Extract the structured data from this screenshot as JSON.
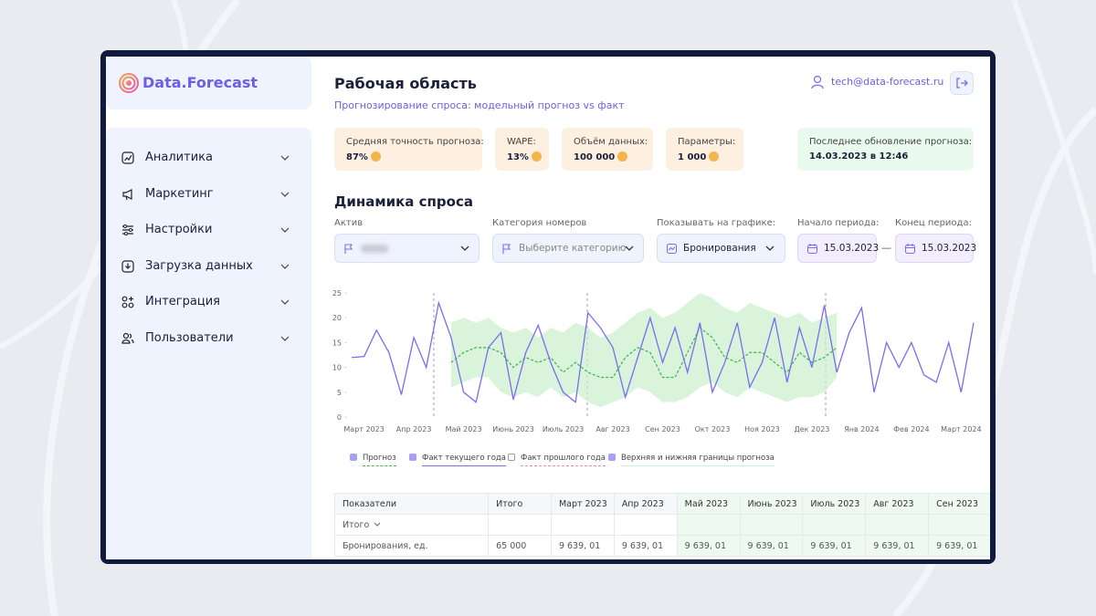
{
  "logo": "Data.Forecast",
  "nav": [
    "Аналитика",
    "Маркетинг",
    "Настройки",
    "Загрузка данных",
    "Интеграция",
    "Пользователи"
  ],
  "header": {
    "title": "Рабочая область",
    "subtitle": "Прогнозирование спроса: модельный прогноз vs факт",
    "user": "tech@data-forecast.ru"
  },
  "kpis": [
    {
      "label": "Средняя точность прогноза:",
      "value": "87%"
    },
    {
      "label": "WAPE:",
      "value": "13%"
    },
    {
      "label": "Объём данных:",
      "value": "100 000"
    },
    {
      "label": "Параметры:",
      "value": "1 000"
    }
  ],
  "last_update": {
    "label": "Последнее обновление прогноза:",
    "value": "14.03.2023 в 12:46"
  },
  "section_title": "Динамика спроса",
  "filters": {
    "asset": {
      "label": "Актив"
    },
    "category": {
      "label": "Категория номеров",
      "placeholder": "Выберите категорию"
    },
    "show": {
      "label": "Показывать на графике:",
      "value": "Бронирования"
    },
    "start": {
      "label": "Начало периода:",
      "value": "15.03.2023"
    },
    "separator": "—",
    "end": {
      "label": "Конец периода:",
      "value": "15.03.2023"
    }
  },
  "chart_data": {
    "type": "line",
    "categories": [
      null,
      "Март 2023",
      null,
      null,
      null,
      "Апр 2023",
      null,
      null,
      null,
      "Май 2023",
      null,
      null,
      null,
      "Июнь 2023",
      null,
      null,
      null,
      "Июль 2023",
      null,
      null,
      null,
      "Авг 2023",
      null,
      null,
      null,
      "Сен 2023",
      null,
      null,
      null,
      "Окт 2023",
      null,
      null,
      null,
      "Ноя 2023",
      null,
      null,
      null,
      "Дек 2023",
      null,
      null,
      null,
      "Янв 2024",
      null,
      null,
      null,
      "Фев 2024",
      null,
      null,
      null,
      "Март 2024",
      null
    ],
    "ylim": [
      0,
      25
    ],
    "yticks": [
      0,
      5,
      10,
      15,
      20,
      25
    ],
    "series": [
      {
        "name": "Прогноз",
        "color": "#3bb54a",
        "dashed": true,
        "checked": true,
        "values": [
          null,
          null,
          null,
          null,
          null,
          null,
          null,
          null,
          11,
          13,
          14,
          14,
          13,
          10,
          12,
          11,
          12,
          9,
          11,
          9,
          8,
          8,
          12,
          14,
          13,
          8,
          8,
          13,
          18,
          16,
          12,
          11,
          13,
          13,
          11,
          9,
          13,
          11,
          12,
          14,
          null,
          null,
          null,
          null,
          null,
          null,
          null,
          null,
          null,
          null,
          null
        ]
      },
      {
        "name": "Факт текущего года",
        "color": "#7b6cf0",
        "dashed": false,
        "checked": true,
        "values": [
          12,
          12.2,
          17.5,
          13,
          4.5,
          16,
          10,
          23,
          16,
          5,
          3,
          14,
          17,
          3.5,
          13,
          18.5,
          11,
          5,
          3,
          21,
          18,
          14,
          4,
          12,
          20,
          11,
          18,
          9,
          19,
          5,
          11,
          19,
          6,
          11,
          20,
          7,
          18,
          10,
          22.5,
          9,
          17,
          22,
          5,
          15,
          10,
          15,
          8.5,
          7,
          15,
          5,
          19
        ]
      },
      {
        "name": "Факт прошлого года",
        "color": "#f08aa0",
        "dashed": true,
        "checked": false
      },
      {
        "name": "Верхняя и нижняя границы прогноза",
        "color": "#c9f0cc",
        "checked": true,
        "upper": [
          null,
          null,
          null,
          null,
          null,
          null,
          null,
          null,
          19,
          20,
          19,
          20,
          18,
          17,
          18,
          16,
          18,
          17,
          19,
          18,
          16,
          17,
          19,
          21,
          22,
          20,
          21,
          23,
          25,
          24,
          22,
          21,
          23,
          22,
          21,
          20,
          21,
          19,
          20,
          21,
          null,
          null,
          null,
          null,
          null,
          null,
          null,
          null,
          null,
          null,
          null
        ],
        "lower": [
          null,
          null,
          null,
          null,
          null,
          null,
          null,
          null,
          6,
          7,
          8,
          8,
          5,
          4,
          5,
          4,
          6,
          4,
          5,
          3,
          2,
          3,
          4,
          6,
          5,
          3,
          3,
          4,
          6,
          7,
          5,
          4,
          6,
          5,
          4,
          3,
          4,
          4,
          5,
          8,
          null,
          null,
          null,
          null,
          null,
          null,
          null,
          null,
          null,
          null,
          null
        ]
      }
    ]
  },
  "table": {
    "header": [
      "Показатели",
      "Итого",
      "Март 2023",
      "Апр 2023",
      "Май 2023",
      "Июнь 2023",
      "Июль 2023",
      "Авг 2023",
      "Сен 2023"
    ],
    "group": "Итого",
    "rows": [
      [
        "Бронирования, ед.",
        "65 000",
        "9 639, 01",
        "9 639, 01",
        "9 639, 01",
        "9 639, 01",
        "9 639, 01",
        "9 639, 01",
        "9 639, 01"
      ]
    ]
  }
}
